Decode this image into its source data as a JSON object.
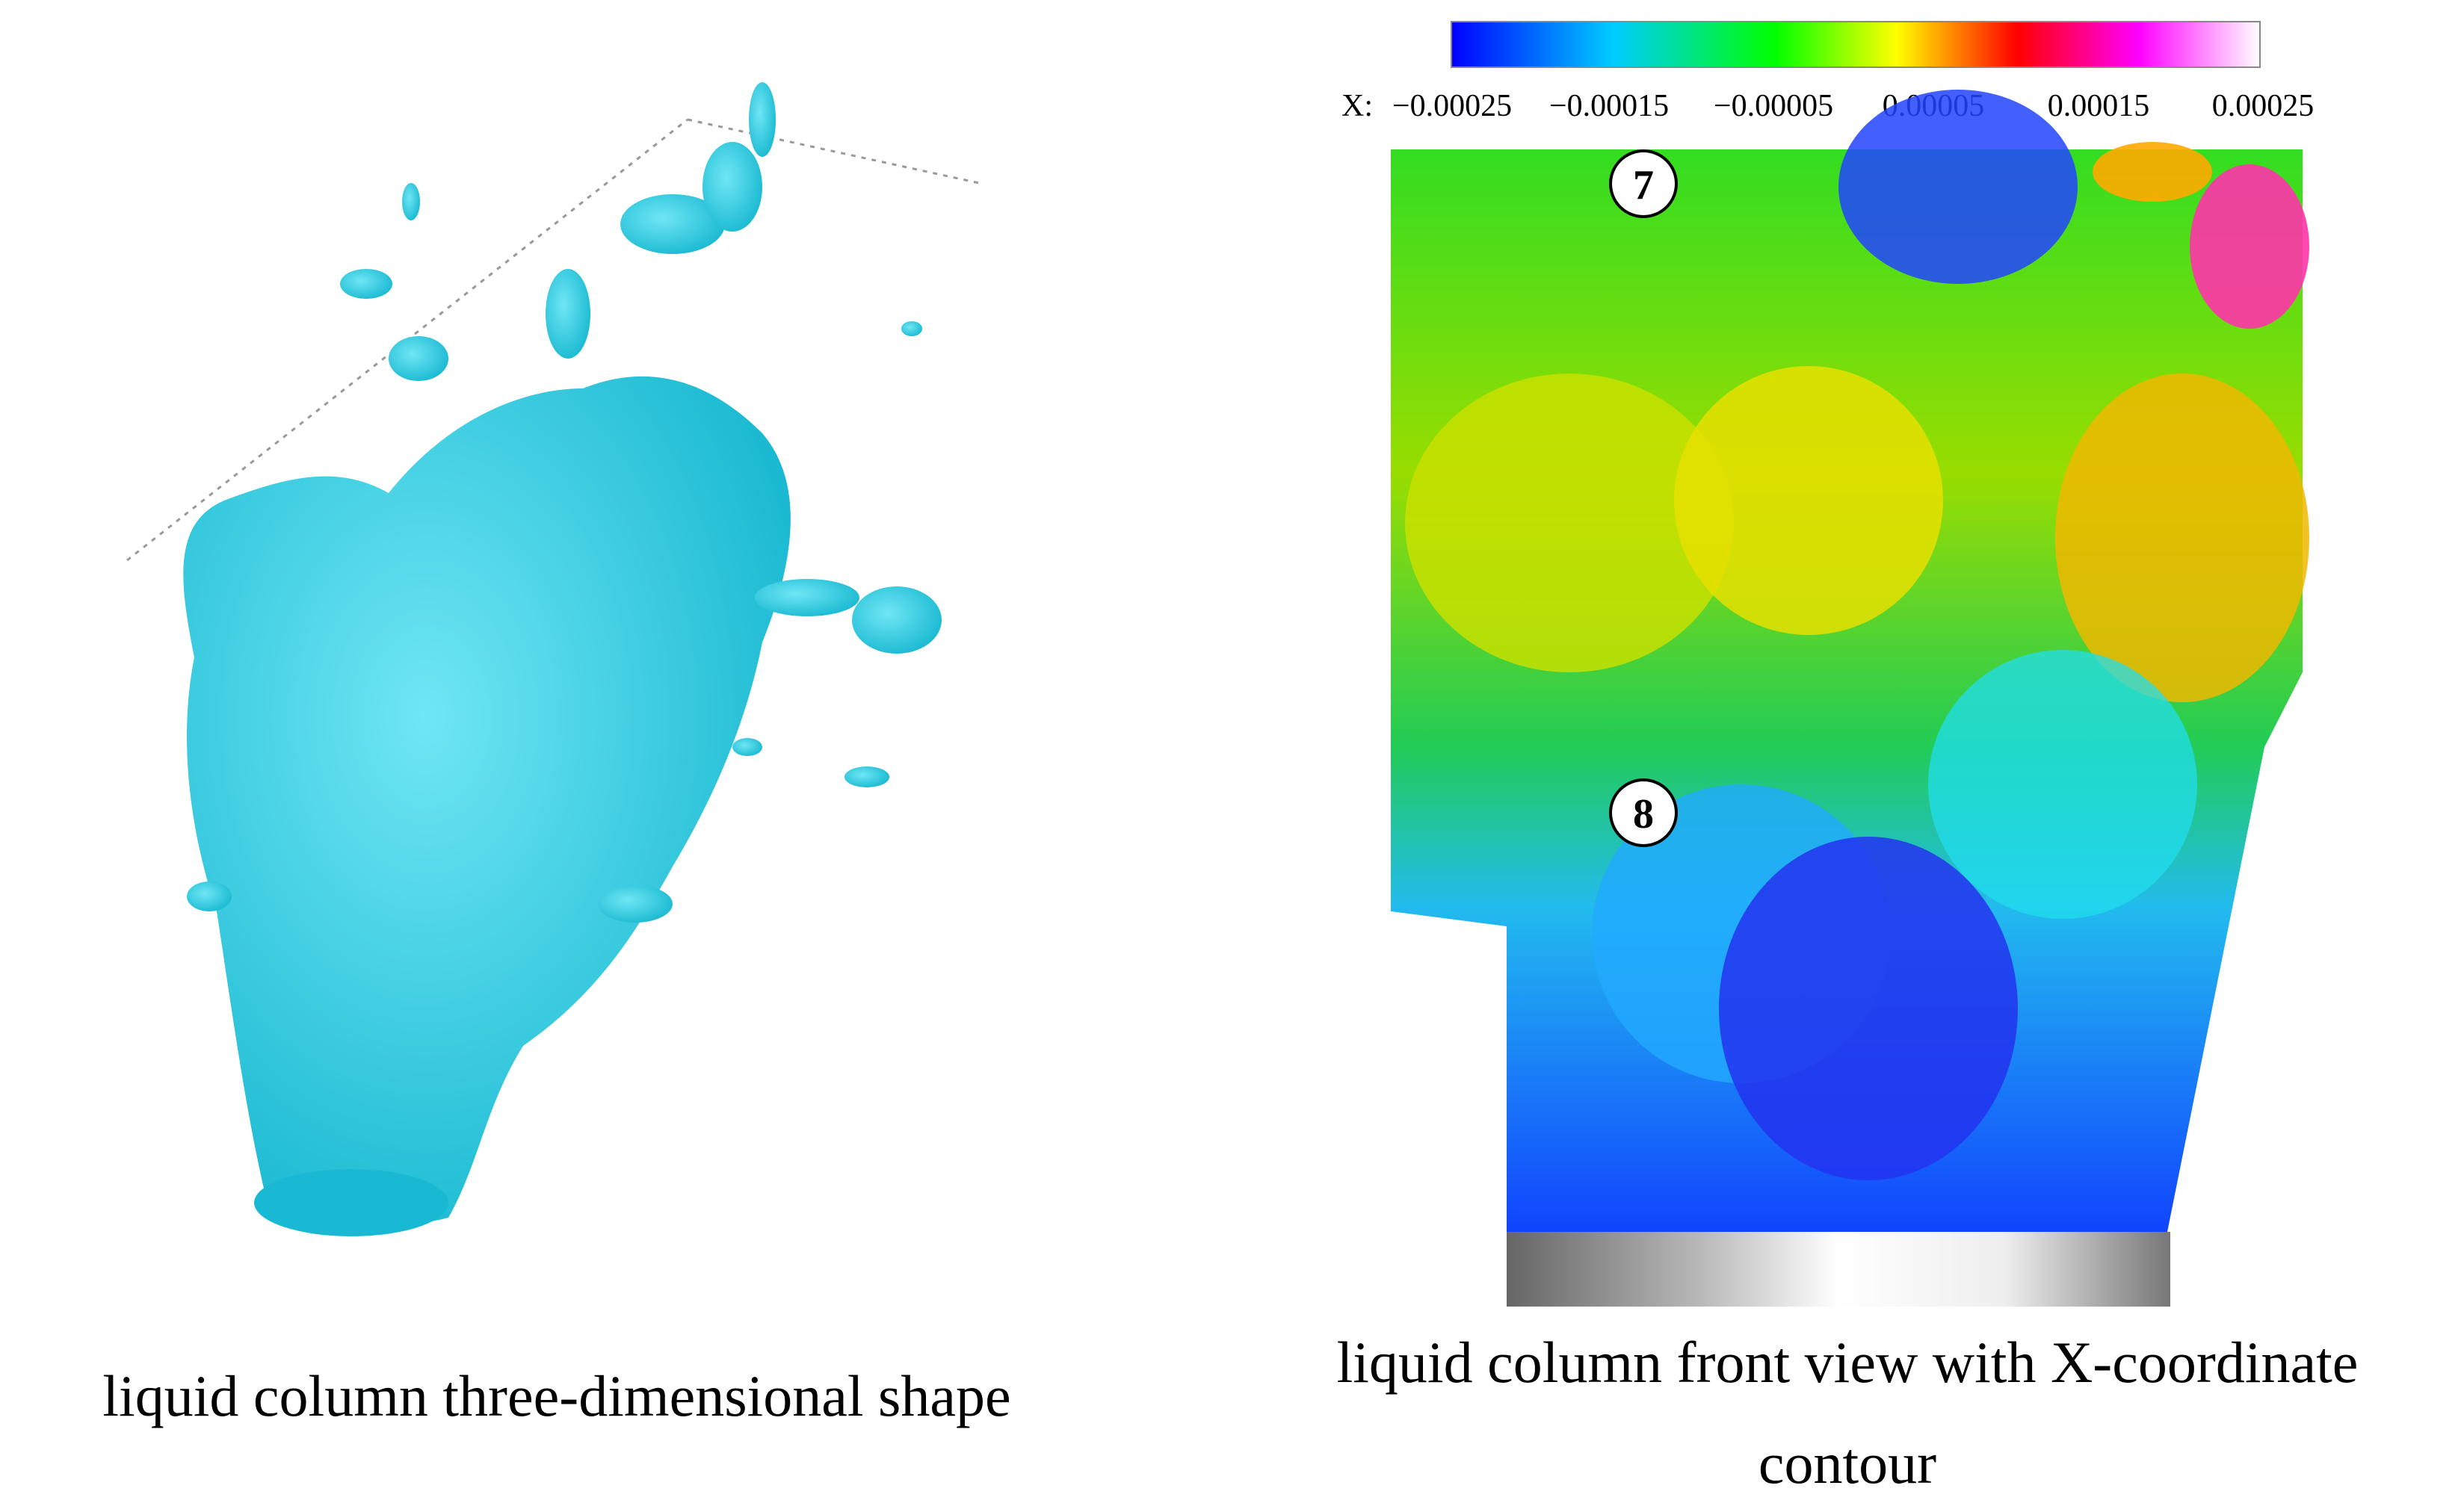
{
  "colorbar": {
    "variable": "X:",
    "labels": [
      "−0.00025",
      "−0.00015",
      "−0.00005",
      "0.00005",
      "0.00015",
      "0.00025"
    ]
  },
  "markers": [
    "7",
    "8"
  ],
  "captions": {
    "left": "liquid column three-dimensional shape",
    "right_line1": "liquid column front view with X-coordinate",
    "right_line2": "contour"
  }
}
